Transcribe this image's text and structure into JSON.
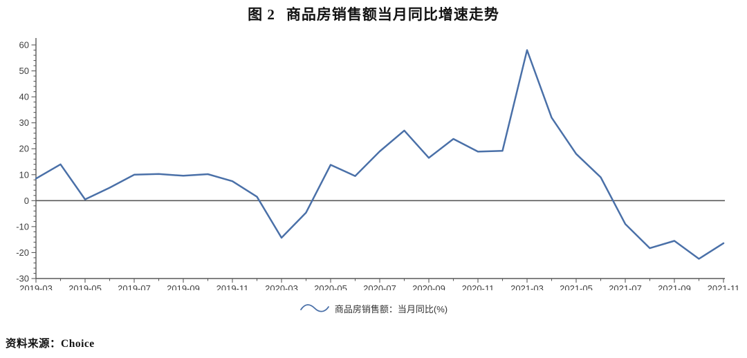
{
  "source": "资料来源：Choice",
  "colors": {
    "line": "#4a70a8",
    "axis": "#595959",
    "zero_line": "#595959",
    "tick_label": "#3d3d3d",
    "title_text": "#121212"
  },
  "chart_data": {
    "type": "line",
    "figure_label": "图 2",
    "title": "商品房销售额当月同比增速走势",
    "x": [
      "2019-03",
      "2019-04",
      "2019-05",
      "2019-06",
      "2019-07",
      "2019-08",
      "2019-09",
      "2019-10",
      "2019-11",
      "2019-12",
      "2020-03",
      "2020-04",
      "2020-05",
      "2020-06",
      "2020-07",
      "2020-08",
      "2020-09",
      "2020-10",
      "2020-11",
      "2020-12",
      "2021-03",
      "2021-04",
      "2021-05",
      "2021-06",
      "2021-07",
      "2021-08",
      "2021-09",
      "2021-10",
      "2021-11"
    ],
    "series": [
      {
        "name": "商品房销售额：当月同比(%)",
        "values": [
          8.5,
          14,
          0.5,
          5,
          10,
          10.3,
          9.6,
          10.2,
          7.5,
          1.5,
          -14.3,
          -4.6,
          13.8,
          9.5,
          19,
          27,
          16.5,
          23.8,
          18.9,
          19.2,
          58,
          32,
          18,
          9,
          -9,
          -18.3,
          -15.5,
          -22.4,
          -16.4
        ]
      }
    ],
    "ylim": [
      -30,
      60
    ],
    "y_major_step": 10,
    "y_minor_step": 2,
    "x_label_every": 2,
    "xlabel": "",
    "ylabel": "",
    "grid": false,
    "zero_line": true,
    "legend_position": "bottom-center"
  }
}
